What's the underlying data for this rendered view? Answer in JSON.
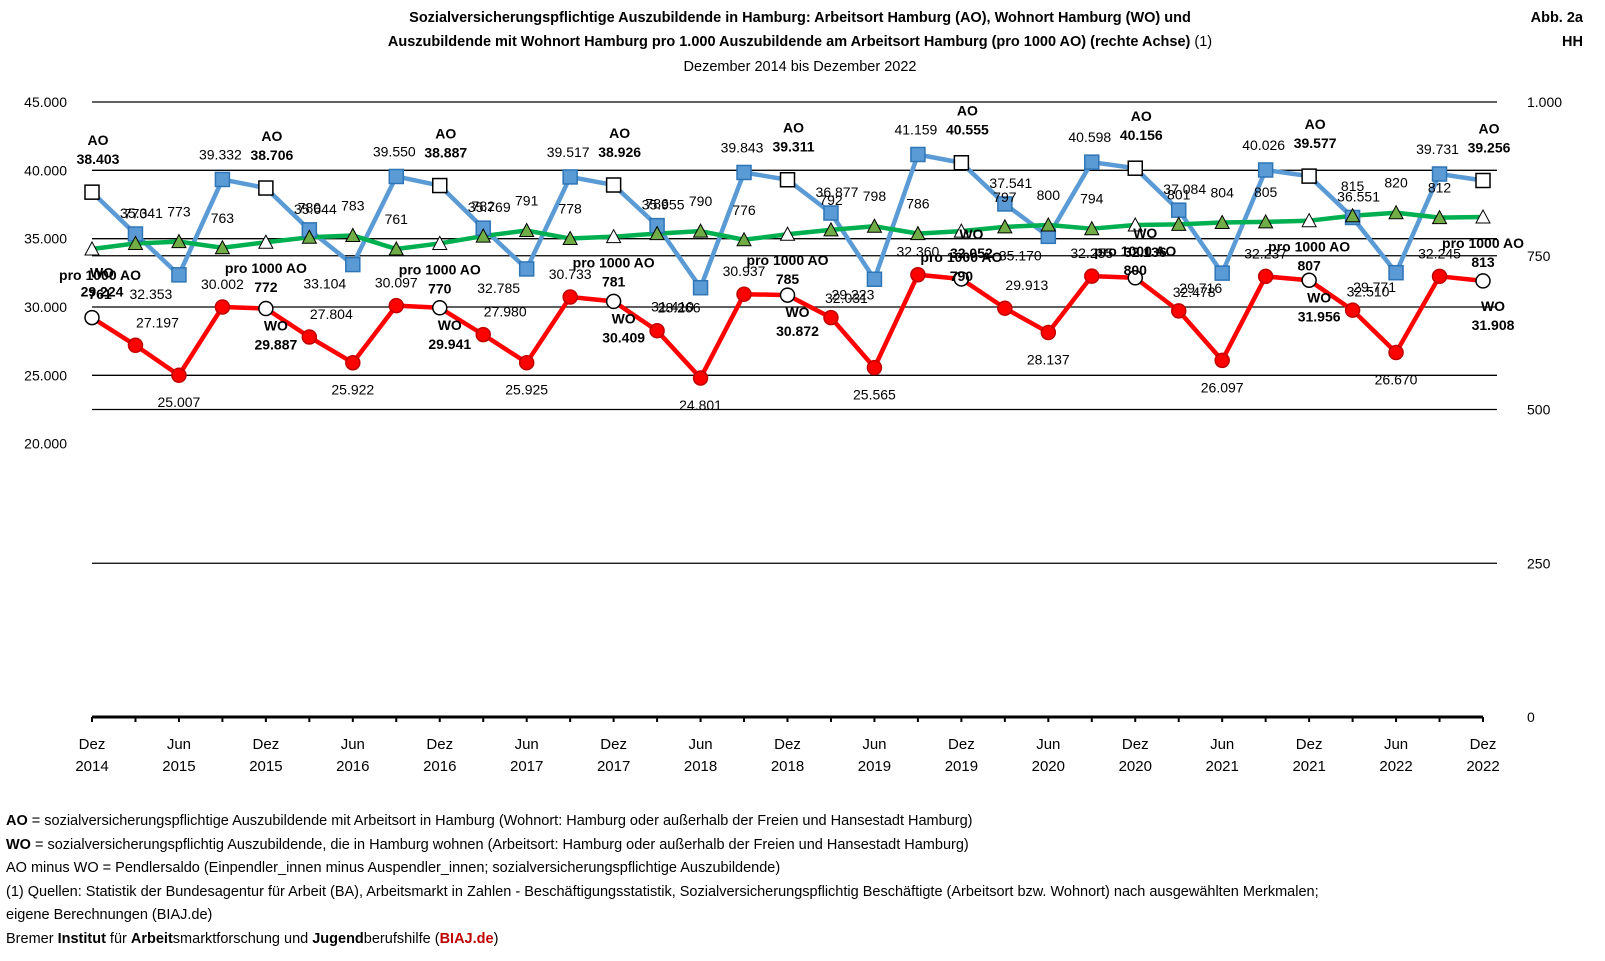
{
  "header": {
    "title_line1": "Sozialversicherungspflichtige Auszubildende in Hamburg: Arbeitsort Hamburg (AO), Wohnort Hamburg (WO) und",
    "title_line2": "Auszubildende mit Wohnort Hamburg pro 1.000  Auszubildende am Arbeitsort Hamburg (pro 1000 AO) (rechte Achse)",
    "title_line2_suffix": "(1)",
    "subtitle": "Dezember 2014 bis Dezember 2022",
    "fig_label": "Abb. 2a",
    "region": "HH"
  },
  "chart_data": {
    "type": "line",
    "x_labels": [
      [
        "Dez",
        "2014"
      ],
      [
        "Jun",
        "2015"
      ],
      [
        "Dez",
        "2015"
      ],
      [
        "Jun",
        "2016"
      ],
      [
        "Dez",
        "2016"
      ],
      [
        "Jun",
        "2017"
      ],
      [
        "Dez",
        "2017"
      ],
      [
        "Jun",
        "2018"
      ],
      [
        "Dez",
        "2018"
      ],
      [
        "Jun",
        "2019"
      ],
      [
        "Dez",
        "2019"
      ],
      [
        "Jun",
        "2020"
      ],
      [
        "Dez",
        "2020"
      ],
      [
        "Jun",
        "2021"
      ],
      [
        "Dez",
        "2021"
      ],
      [
        "Jun",
        "2022"
      ],
      [
        "Dez",
        "2022"
      ]
    ],
    "y_left": {
      "min": 0,
      "max": 45000,
      "ticks": [
        "20.000",
        "25.000",
        "30.000",
        "35.000",
        "40.000",
        "45.000"
      ],
      "tick_values": [
        20000,
        25000,
        30000,
        35000,
        40000,
        45000
      ]
    },
    "y_right": {
      "min": 0,
      "max": 1000,
      "ticks": [
        "0",
        "250",
        "500",
        "750",
        "1.000"
      ],
      "tick_values": [
        0,
        250,
        500,
        750,
        1000
      ]
    },
    "series": [
      {
        "name": "AO",
        "color": "#5b9bd5",
        "marker": "square",
        "axis": "left",
        "values": [
          38403,
          35341,
          32353,
          39332,
          38706,
          35644,
          33104,
          39550,
          38887,
          35769,
          32785,
          39517,
          38926,
          35955,
          31410,
          39843,
          39311,
          36877,
          32031,
          41159,
          40555,
          37541,
          35170,
          40598,
          40156,
          37084,
          32478,
          40026,
          39577,
          36551,
          32510,
          39731,
          39256
        ],
        "labels": [
          "38.403",
          "35.341",
          "32.353",
          "39.332",
          "38.706",
          "35.644",
          "33.104",
          "39.550",
          "38.887",
          "35.769",
          "32.785",
          "39.517",
          "38.926",
          "35.955",
          "31.410",
          "39.843",
          "39.311",
          "36.877",
          "32.031",
          "41.159",
          "40.555",
          "37.541",
          "35.170",
          "40.598",
          "40.156",
          "37.084",
          "32.478",
          "40.026",
          "39.577",
          "36.551",
          "32.510",
          "39.731",
          "39.256"
        ]
      },
      {
        "name": "WO",
        "color": "#ff0000",
        "marker": "circle",
        "axis": "left",
        "values": [
          29224,
          27197,
          25007,
          30002,
          29887,
          27804,
          25922,
          30097,
          29941,
          27980,
          25925,
          30733,
          30409,
          28266,
          24801,
          30937,
          30872,
          29223,
          25565,
          32360,
          32052,
          29913,
          28137,
          32255,
          32136,
          29716,
          26097,
          32237,
          31956,
          29771,
          26670,
          32245,
          31908
        ],
        "labels": [
          "29.224",
          "27.197",
          "25.007",
          "30.002",
          "29.887",
          "27.804",
          "25.922",
          "30.097",
          "29.941",
          "27.980",
          "25.925",
          "30.733",
          "30.409",
          "28.266",
          "24.801",
          "30.937",
          "30.872",
          "29.223",
          "25.565",
          "32.360",
          "32.052",
          "29.913",
          "28.137",
          "32.255",
          "32.136",
          "29.716",
          "26.097",
          "32.237",
          "31.956",
          "29.771",
          "26.670",
          "32.245",
          "31.908"
        ]
      },
      {
        "name": "pro 1000 AO",
        "color": "#00b050",
        "marker": "triangle",
        "axis": "right",
        "values": [
          761,
          770,
          773,
          763,
          772,
          780,
          783,
          761,
          770,
          782,
          791,
          778,
          781,
          786,
          790,
          776,
          785,
          792,
          798,
          786,
          790,
          797,
          800,
          794,
          800,
          801,
          804,
          805,
          807,
          815,
          820,
          812,
          813
        ],
        "labels": [
          "761",
          "770",
          "773",
          "763",
          "772",
          "780",
          "783",
          "761",
          "770",
          "782",
          "791",
          "778",
          "781",
          "786",
          "790",
          "776",
          "785",
          "792",
          "798",
          "786",
          "790",
          "797",
          "800",
          "794",
          "800",
          "801",
          "804",
          "805",
          "807",
          "815",
          "820",
          "812",
          "813"
        ]
      }
    ],
    "december_callout_labels": {
      "AO": "AO",
      "WO": "WO",
      "ratio": "pro 1000 AO"
    },
    "colors": {
      "ao_dark": "#2e75b6",
      "wo_dark": "#c00000",
      "ratio_triangle": "#70ad47",
      "gridline": "#000000"
    }
  },
  "notes": {
    "line1_abbr": "AO",
    "line1_text": " = sozialversicherungspflichtige Auszubildende mit Arbeitsort in Hamburg (Wohnort: Hamburg oder außerhalb der Freien und Hansestadt Hamburg)",
    "line2_abbr": "WO",
    "line2_text": " = sozialversicherungspflichtig Auszubildende, die in Hamburg wohnen (Arbeitsort: Hamburg oder außerhalb der Freien und Hansestadt Hamburg)",
    "line3": "AO minus WO = Pendlersaldo (Einpendler_innen minus Auspendler_innen; sozialversicherungspflichtige Auszubildende)",
    "line4": "(1) Quellen: Statistik der Bundesagentur für Arbeit (BA), Arbeitsmarkt in Zahlen - Beschäftigungsstatistik, Sozialversicherungspflichtig Beschäftigte (Arbeitsort bzw. Wohnort) nach ausgewählten Merkmalen;",
    "line5": "eigene Berechnungen (BIAJ.de)",
    "footer_a": "Bremer ",
    "footer_b": "Institut",
    "footer_c": " für ",
    "footer_d": "Arbeit",
    "footer_e": "smarktforschung und ",
    "footer_f": "Jugend",
    "footer_g": "berufshilfe (",
    "footer_h": "BIAJ.de",
    "footer_i": ")"
  }
}
